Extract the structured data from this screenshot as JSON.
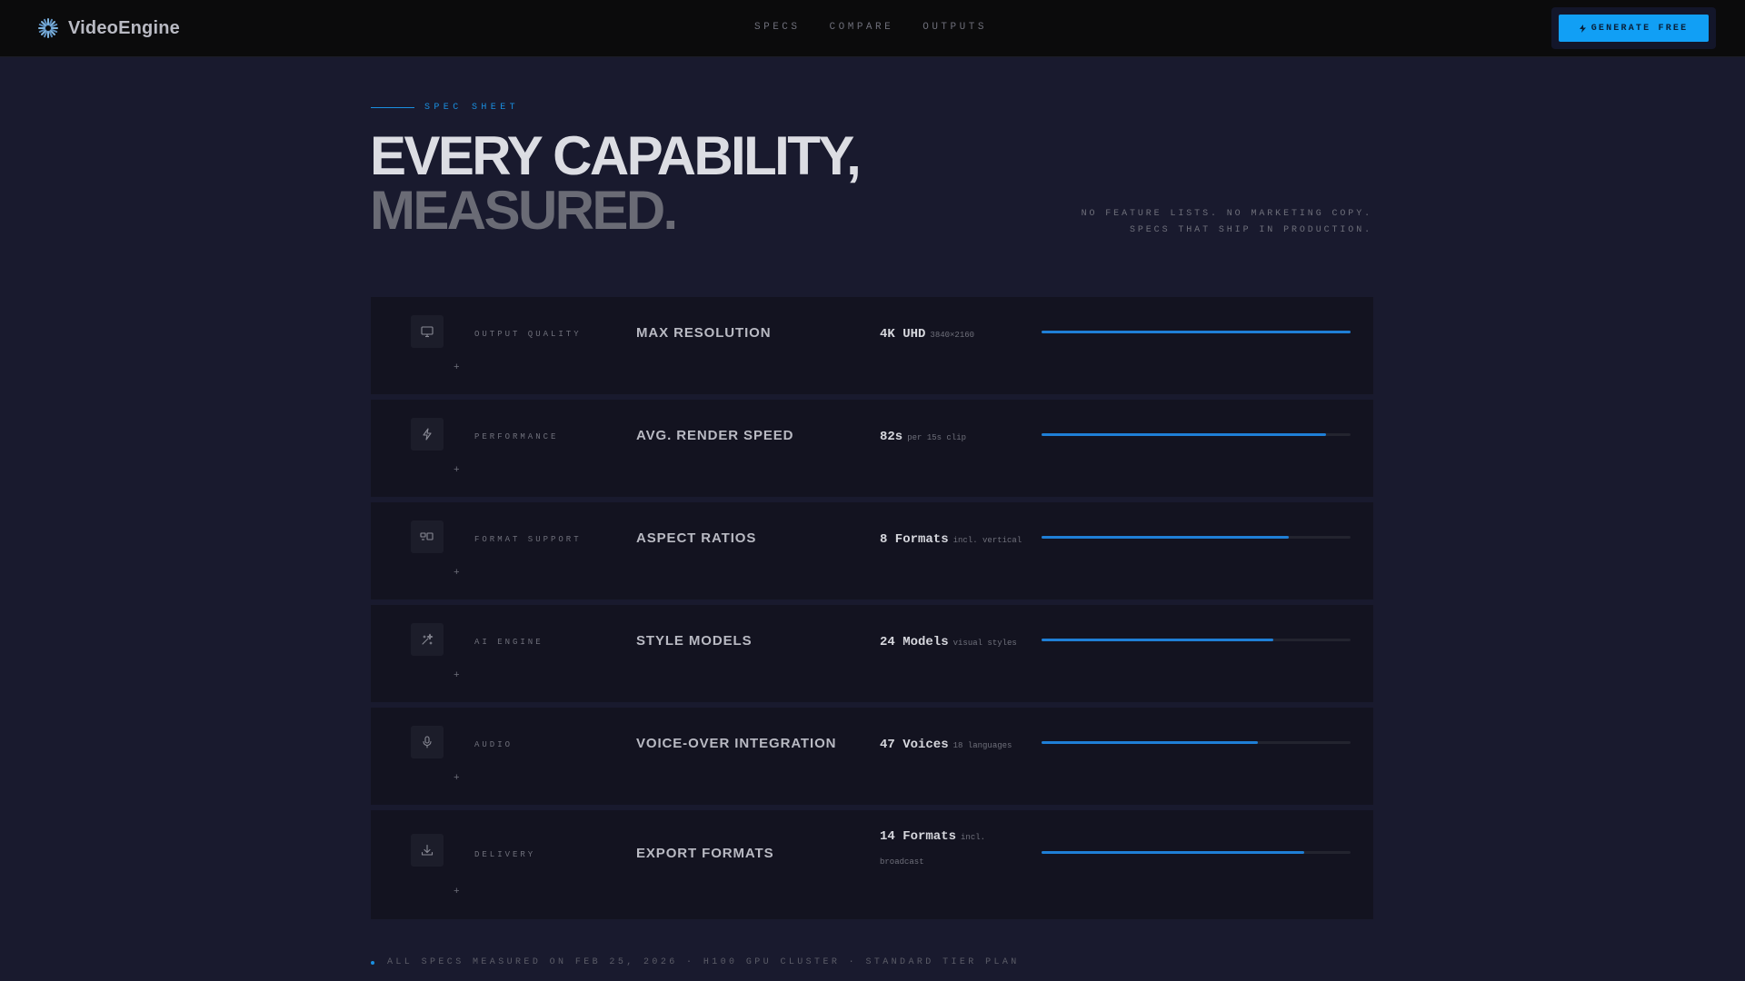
{
  "brand": {
    "name": "VideoEngine",
    "icon": "sparkle-logo-icon"
  },
  "nav": {
    "items": [
      "SPECS",
      "COMPARE",
      "OUTPUTS"
    ]
  },
  "cta": {
    "label": "GENERATE FREE",
    "icon": "bolt-icon"
  },
  "hero": {
    "eyebrow": "SPEC SHEET",
    "title_line1": "EVERY CAPABILITY,",
    "title_line2": "MEASURED.",
    "tagline_line1": "NO FEATURE LISTS. NO MARKETING COPY.",
    "tagline_line2": "SPECS THAT SHIP IN PRODUCTION."
  },
  "colors": {
    "accent": "#119ff5",
    "bar": "#1f7fd6",
    "background": "#191a2e"
  },
  "specs": [
    {
      "icon": "monitor-icon",
      "category": "OUTPUT QUALITY",
      "metric": "MAX RESOLUTION",
      "value": "4K UHD",
      "unit": "3840×2160",
      "level": 1.0
    },
    {
      "icon": "lightning-icon",
      "category": "PERFORMANCE",
      "metric": "AVG. RENDER SPEED",
      "value": "82s",
      "unit": "per 15s clip",
      "level": 0.92
    },
    {
      "icon": "aspect-ratio-icon",
      "category": "FORMAT SUPPORT",
      "metric": "ASPECT RATIOS",
      "value": "8 Formats",
      "unit": "incl. vertical",
      "level": 0.8
    },
    {
      "icon": "sparkles-icon",
      "category": "AI ENGINE",
      "metric": "STYLE MODELS",
      "value": "24 Models",
      "unit": "visual styles",
      "level": 0.75
    },
    {
      "icon": "microphone-icon",
      "category": "AUDIO",
      "metric": "VOICE-OVER INTEGRATION",
      "value": "47 Voices",
      "unit": "18 languages",
      "level": 0.7
    },
    {
      "icon": "download-icon",
      "category": "DELIVERY",
      "metric": "EXPORT FORMATS",
      "value": "14 Formats",
      "unit": "incl. broadcast",
      "level": 0.85
    }
  ],
  "footnote": "ALL SPECS MEASURED ON FEB 25, 2026 · H100 GPU CLUSTER · STANDARD TIER PLAN"
}
